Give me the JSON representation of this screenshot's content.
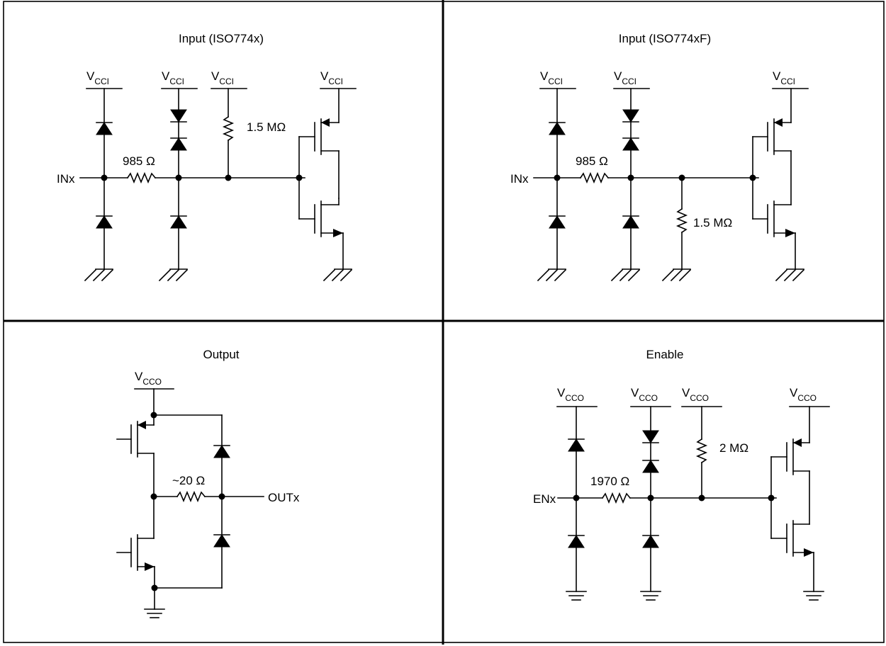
{
  "panels": {
    "input": {
      "title": "Input (ISO774x)",
      "supply": "V",
      "supply_sub": "CCI",
      "pin": "INx",
      "series_resistor": "985 Ω",
      "pull_resistor": "1.5 MΩ"
    },
    "input_f": {
      "title": "Input (ISO774xF)",
      "supply": "V",
      "supply_sub": "CCI",
      "pin": "INx",
      "series_resistor": "985 Ω",
      "pull_resistor": "1.5 MΩ"
    },
    "output": {
      "title": "Output",
      "supply": "V",
      "supply_sub": "CCO",
      "pin": "OUTx",
      "series_resistor": "~20 Ω"
    },
    "enable": {
      "title": "Enable",
      "supply": "V",
      "supply_sub": "CCO",
      "pin": "ENx",
      "series_resistor": "1970 Ω",
      "pull_resistor": "2 MΩ"
    }
  }
}
